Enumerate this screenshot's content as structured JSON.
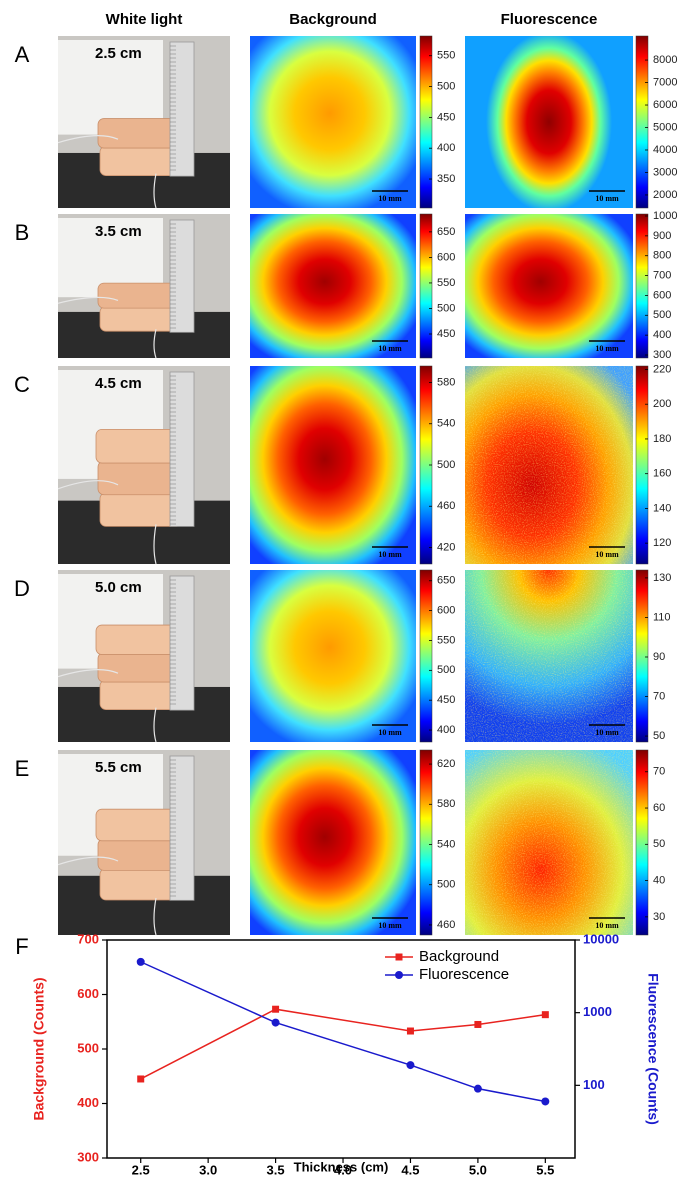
{
  "column_headers": [
    "White light",
    "Background",
    "Fluorescence"
  ],
  "panels": [
    {
      "letter": "A",
      "thickness": "2.5 cm",
      "background": {
        "ticks": [
          550,
          500,
          450,
          400,
          350
        ],
        "lim": [
          303,
          582
        ],
        "scale_bar": "10 mm"
      },
      "fluorescence": {
        "ticks": [
          8000,
          7000,
          6000,
          5000,
          4000,
          3000,
          2000
        ],
        "lim": [
          1420,
          9070
        ],
        "scale_bar": "10 mm"
      }
    },
    {
      "letter": "B",
      "thickness": "3.5 cm",
      "background": {
        "ticks": [
          650,
          600,
          550,
          500,
          450
        ],
        "lim": [
          403,
          685
        ],
        "scale_bar": "10 mm"
      },
      "fluorescence": {
        "ticks": [
          1000,
          900,
          800,
          700,
          600,
          500,
          400,
          300
        ],
        "lim": [
          285,
          1010
        ],
        "scale_bar": "10 mm"
      }
    },
    {
      "letter": "C",
      "thickness": "4.5 cm",
      "background": {
        "ticks": [
          580,
          540,
          500,
          460,
          420
        ],
        "lim": [
          404,
          596
        ],
        "scale_bar": "10 mm"
      },
      "fluorescence": {
        "ticks": [
          220,
          200,
          180,
          160,
          140,
          120
        ],
        "lim": [
          108,
          222
        ],
        "scale_bar": "10 mm"
      }
    },
    {
      "letter": "D",
      "thickness": "5.0 cm",
      "background": {
        "ticks": [
          650,
          600,
          550,
          500,
          450,
          400
        ],
        "lim": [
          380,
          668
        ],
        "scale_bar": "10 mm"
      },
      "fluorescence": {
        "ticks": [
          130,
          110,
          90,
          70,
          50
        ],
        "lim": [
          47,
          134
        ],
        "scale_bar": "10 mm"
      }
    },
    {
      "letter": "E",
      "thickness": "5.5 cm",
      "background": {
        "ticks": [
          620,
          580,
          540,
          500,
          460
        ],
        "lim": [
          450,
          634
        ],
        "scale_bar": "10 mm"
      },
      "fluorescence": {
        "ticks": [
          70,
          60,
          50,
          40,
          30
        ],
        "lim": [
          25,
          76
        ],
        "scale_bar": "10 mm"
      }
    }
  ],
  "chart_data": {
    "type": "line",
    "panel_label": "F",
    "xlabel": "Thickness (cm)",
    "ylabel": "Background (Counts)",
    "y2label": "Fluorescence (Counts)",
    "x": [
      2.5,
      3.5,
      4.5,
      5.0,
      5.5
    ],
    "xlim": [
      2.25,
      5.72
    ],
    "xticks": [
      2.5,
      {
        "value": 3,
        "label": "3.0"
      },
      3.5,
      {
        "value": 4,
        "label": "4.0"
      },
      4.5,
      {
        "value": 5,
        "label": "5.0"
      },
      5.5
    ],
    "ylim": [
      300,
      700
    ],
    "yticks": [
      300,
      400,
      500,
      600,
      700
    ],
    "y2lim": [
      10,
      10000
    ],
    "y2ticks": [
      100,
      1000,
      10000
    ],
    "y2log": true,
    "legend": "upper right",
    "series": [
      {
        "name": "Background",
        "color": "#e8231f",
        "marker": "square",
        "values": [
          445,
          573,
          533,
          545,
          563
        ]
      },
      {
        "name": "Fluorescence",
        "color": "#1a1acc",
        "marker": "circle",
        "axis": "y2",
        "values": [
          5000,
          730,
          190,
          90,
          60
        ]
      }
    ]
  }
}
